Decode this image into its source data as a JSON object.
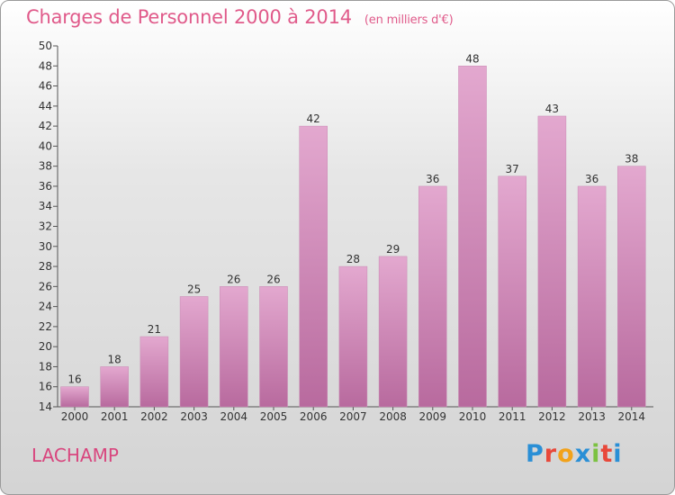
{
  "title": "Charges de Personnel 2000 à 2014",
  "subtitle": "(en milliers d'€)",
  "place": "LACHAMP",
  "logo_text": "Proxiti",
  "colors": {
    "bar_top": "#e3a8cf",
    "bar_bottom": "#b86a9e",
    "title": "#e05a8a"
  },
  "chart_data": {
    "type": "bar",
    "categories": [
      "2000",
      "2001",
      "2002",
      "2003",
      "2004",
      "2005",
      "2006",
      "2007",
      "2008",
      "2009",
      "2010",
      "2011",
      "2012",
      "2013",
      "2014"
    ],
    "values": [
      16,
      18,
      21,
      25,
      26,
      26,
      42,
      28,
      29,
      36,
      48,
      37,
      43,
      36,
      38
    ],
    "ylim": [
      14,
      50
    ],
    "yticks": [
      14,
      16,
      18,
      20,
      22,
      24,
      26,
      28,
      30,
      32,
      34,
      36,
      38,
      40,
      42,
      44,
      46,
      48,
      50
    ],
    "grid": false,
    "legend": "none"
  }
}
